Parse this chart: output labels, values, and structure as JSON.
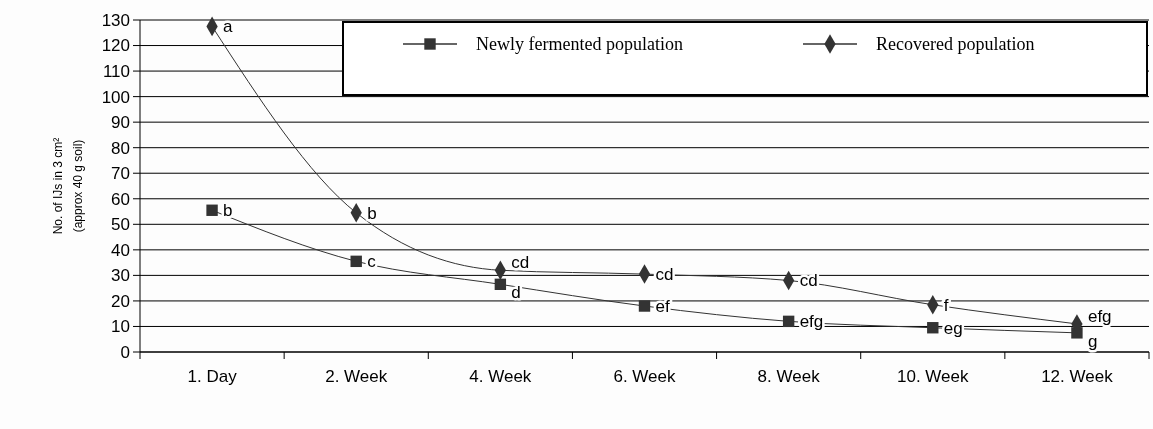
{
  "chart_data": {
    "type": "line",
    "ylabel": "No. of IJs in 3 cm²\n(approx 40 g soil)",
    "categories": [
      "1. Day",
      "2. Week",
      "4. Week",
      "6. Week",
      "8. Week",
      "10. Week",
      "12. Week"
    ],
    "series": [
      {
        "name": "Newly fermented population",
        "color": "#333333",
        "marker": "square",
        "values": [
          55.5,
          35.5,
          26.5,
          18,
          12,
          9.5,
          7.5
        ]
      },
      {
        "name": "Recovered population",
        "color": "#333333",
        "marker": "diamond",
        "values": [
          127.5,
          54.5,
          32,
          30.5,
          28,
          18.5,
          11
        ]
      }
    ],
    "ylim": [
      0,
      130
    ],
    "yticks": [
      0,
      10,
      20,
      30,
      40,
      50,
      60,
      70,
      80,
      90,
      100,
      110,
      120,
      130
    ],
    "grid": "y",
    "legend": "top right",
    "line_style": "solid",
    "annotations": [
      {
        "text": "b",
        "x": "1. Day",
        "y": 55.5
      },
      {
        "text": "c",
        "x": "2. Week",
        "y": 35.5
      },
      {
        "text": "d",
        "x": "4. Week",
        "y": 26.5
      },
      {
        "text": "ef",
        "x": "6. Week",
        "y": 18
      },
      {
        "text": "efg",
        "x": "8. Week",
        "y": 12
      },
      {
        "text": "eg",
        "x": "10. Week",
        "y": 9.5
      },
      {
        "text": "g",
        "x": "12. Week",
        "y": 7.5
      },
      {
        "text": "a",
        "x": "1. Day",
        "y": 127.5
      },
      {
        "text": "b",
        "x": "2. Week",
        "y": 54.5
      },
      {
        "text": "cd",
        "x": "4. Week",
        "y": 32
      },
      {
        "text": "cd",
        "x": "6. Week",
        "y": 30.5
      },
      {
        "text": "cd",
        "x": "8. Week",
        "y": 28
      },
      {
        "text": "f",
        "x": "10. Week",
        "y": 18.5
      },
      {
        "text": "efg",
        "x": "12. Week",
        "y": 11
      }
    ]
  }
}
